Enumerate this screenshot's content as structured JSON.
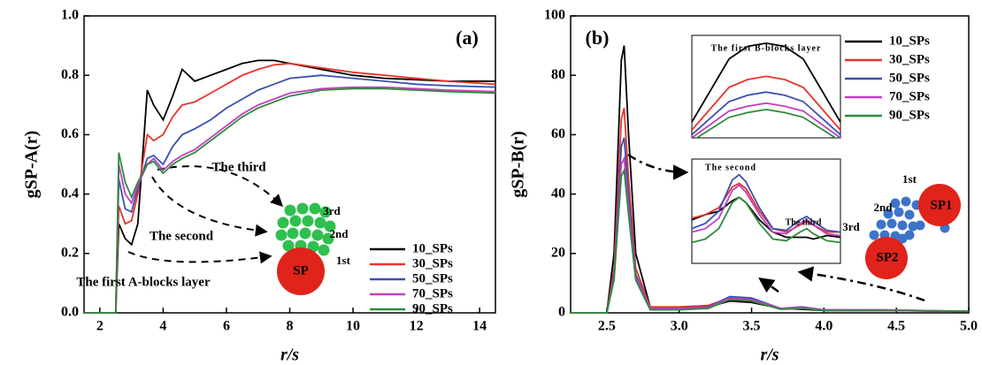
{
  "chart_data": [
    {
      "type": "line",
      "ylabel": "gSP-A(r)",
      "xlabel": "r/s",
      "xlim": [
        1.5,
        14.5
      ],
      "xticks": [
        2,
        4,
        6,
        8,
        10,
        12,
        14
      ],
      "ylim": [
        0,
        1.0
      ],
      "yticks": [
        {
          "value": 0,
          "label": "0.0"
        },
        0.2,
        0.4,
        0.6,
        0.8,
        {
          "value": 1,
          "label": "1.0"
        }
      ],
      "x": [
        1.5,
        2.5,
        2.6,
        2.8,
        3.0,
        3.2,
        3.5,
        3.7,
        4.0,
        4.3,
        4.6,
        5,
        5.5,
        6,
        6.5,
        7,
        7.5,
        8,
        9,
        10,
        11,
        12,
        13,
        14.5
      ],
      "series": [
        {
          "name": "10_SPs",
          "color": "#000000",
          "values": [
            0,
            0,
            0.3,
            0.25,
            0.23,
            0.3,
            0.75,
            0.7,
            0.65,
            0.73,
            0.82,
            0.78,
            0.8,
            0.82,
            0.84,
            0.85,
            0.85,
            0.84,
            0.82,
            0.8,
            0.79,
            0.785,
            0.78,
            0.78
          ]
        },
        {
          "name": "30_SPs",
          "color": "#e8332a",
          "values": [
            0,
            0,
            0.36,
            0.3,
            0.31,
            0.4,
            0.6,
            0.58,
            0.6,
            0.66,
            0.7,
            0.71,
            0.74,
            0.77,
            0.8,
            0.82,
            0.835,
            0.84,
            0.825,
            0.81,
            0.8,
            0.79,
            0.78,
            0.77
          ]
        },
        {
          "name": "50_SPs",
          "color": "#3b4fb0",
          "values": [
            0,
            0,
            0.45,
            0.35,
            0.34,
            0.42,
            0.52,
            0.53,
            0.5,
            0.56,
            0.6,
            0.62,
            0.65,
            0.69,
            0.72,
            0.75,
            0.77,
            0.79,
            0.8,
            0.79,
            0.78,
            0.77,
            0.765,
            0.76
          ]
        },
        {
          "name": "70_SPs",
          "color": "#c040c0",
          "values": [
            0,
            0,
            0.5,
            0.4,
            0.37,
            0.43,
            0.5,
            0.52,
            0.48,
            0.51,
            0.53,
            0.55,
            0.59,
            0.63,
            0.67,
            0.7,
            0.72,
            0.74,
            0.755,
            0.76,
            0.76,
            0.755,
            0.75,
            0.745
          ]
        },
        {
          "name": "90_SPs",
          "color": "#2e8b3a",
          "values": [
            0,
            0,
            0.54,
            0.44,
            0.39,
            0.44,
            0.5,
            0.51,
            0.47,
            0.5,
            0.52,
            0.54,
            0.58,
            0.62,
            0.66,
            0.69,
            0.71,
            0.73,
            0.75,
            0.755,
            0.755,
            0.75,
            0.745,
            0.74
          ]
        }
      ],
      "annotations": [
        "(a)",
        "The third",
        "The second",
        "The first A-blocks layer",
        "SP",
        "3rd",
        "2nd",
        "1st"
      ]
    },
    {
      "type": "line",
      "ylabel": "gSP-B(r)",
      "xlabel": "r/s",
      "xlim": [
        2.25,
        5.0
      ],
      "xticks": [
        2.5,
        {
          "value": 3,
          "label": "3.0"
        },
        3.5,
        {
          "value": 4,
          "label": "4.0"
        },
        4.5,
        {
          "value": 5,
          "label": "5.0"
        }
      ],
      "ylim": [
        0,
        100
      ],
      "yticks": [
        0,
        20,
        40,
        60,
        80,
        100
      ],
      "x": [
        2.25,
        2.5,
        2.55,
        2.6,
        2.62,
        2.65,
        2.7,
        2.8,
        2.9,
        3.0,
        3.2,
        3.35,
        3.5,
        3.7,
        3.85,
        4.0,
        4.4,
        5.0
      ],
      "series": [
        {
          "name": "10_SPs",
          "color": "#000000",
          "values": [
            0,
            0,
            20,
            85,
            90,
            60,
            20,
            2,
            1.5,
            1.8,
            2,
            4,
            3.5,
            1.5,
            1.2,
            0.8,
            0.8,
            0.5
          ]
        },
        {
          "name": "30_SPs",
          "color": "#e8332a",
          "values": [
            0,
            0,
            15,
            65,
            69,
            45,
            15,
            2,
            2,
            2,
            2.5,
            5,
            4,
            1.5,
            1.5,
            1,
            0.8,
            0.5
          ]
        },
        {
          "name": "50_SPs",
          "color": "#3b4fb0",
          "values": [
            0,
            0,
            13,
            56,
            59,
            40,
            13,
            1.5,
            1.5,
            1.5,
            2,
            5.5,
            5,
            1.5,
            2,
            1,
            1,
            0.5
          ]
        },
        {
          "name": "70_SPs",
          "color": "#c040c0",
          "values": [
            0,
            0,
            12,
            50,
            52,
            36,
            12,
            1.5,
            1.5,
            1.5,
            1.8,
            5,
            4.5,
            1.5,
            1.8,
            1,
            1,
            0.5
          ]
        },
        {
          "name": "90_SPs",
          "color": "#2e8b3a",
          "values": [
            0,
            0,
            11,
            46,
            48,
            33,
            11,
            1,
            1,
            1,
            1.5,
            4.5,
            4,
            1.2,
            1.5,
            0.8,
            0.8,
            0.5
          ]
        }
      ],
      "insets": [
        {
          "title": "The first B-blocks layer",
          "xlim": [
            2.58,
            2.66
          ],
          "ylim": [
            30,
            95
          ],
          "x": [
            2.58,
            2.6,
            2.61,
            2.62,
            2.63,
            2.64,
            2.66
          ],
          "series_values": [
            [
              40,
              80,
              88,
              90,
              88,
              80,
              40
            ],
            [
              35,
              62,
              67,
              69,
              67,
              62,
              35
            ],
            [
              32,
              53,
              57,
              59,
              57,
              53,
              32
            ],
            [
              30,
              47,
              50,
              52,
              50,
              47,
              30
            ],
            [
              28,
              43,
              46,
              48,
              46,
              43,
              28
            ]
          ]
        },
        {
          "title": "The second",
          "xlim": [
            3.0,
            4.1
          ],
          "ylim": [
            0,
            6
          ],
          "x": [
            3.0,
            3.1,
            3.2,
            3.3,
            3.35,
            3.4,
            3.5,
            3.6,
            3.7,
            3.8,
            3.85,
            3.9,
            4.0,
            4.1
          ],
          "series_values": [
            [
              2.5,
              2.8,
              3,
              3.6,
              3.8,
              3.5,
              2.5,
              1.8,
              1.5,
              1.5,
              1.5,
              1.4,
              1.6,
              1.5
            ],
            [
              2.6,
              2.8,
              3.2,
              4.4,
              4.6,
              4.3,
              3,
              2,
              1.8,
              2.2,
              2.4,
              2.2,
              1.8,
              1.8
            ],
            [
              2,
              2.3,
              3,
              4.8,
              5.1,
              4.7,
              3.2,
              2,
              1.9,
              2.5,
              2.7,
              2.4,
              1.9,
              1.8
            ],
            [
              1.8,
              2,
              2.6,
              4.2,
              4.5,
              4.1,
              2.8,
              1.8,
              1.7,
              2.3,
              2.5,
              2.2,
              1.7,
              1.6
            ],
            [
              1.2,
              1.4,
              2,
              3.5,
              3.8,
              3.5,
              2.3,
              1.4,
              1.3,
              1.8,
              2,
              1.7,
              1.3,
              1.2
            ]
          ],
          "label": "The third"
        }
      ],
      "annotations": [
        "(b)",
        "SP1",
        "SP2",
        "1st",
        "2nd",
        "3rd"
      ]
    }
  ]
}
